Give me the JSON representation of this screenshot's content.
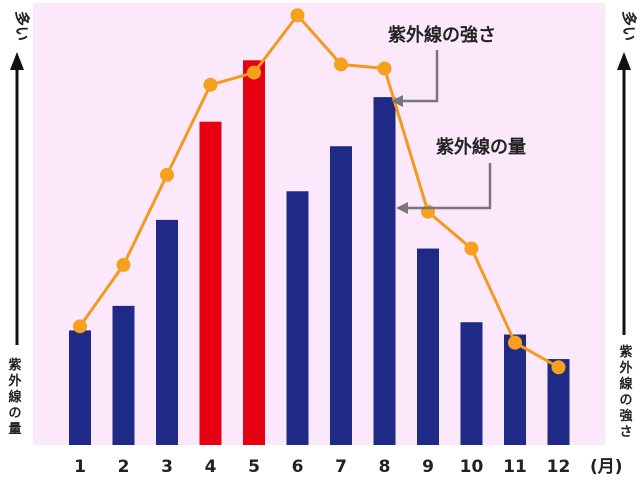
{
  "chart_data": {
    "type": "bar",
    "categories": [
      "1",
      "2",
      "3",
      "4",
      "5",
      "6",
      "7",
      "8",
      "9",
      "10",
      "11",
      "12"
    ],
    "x_unit": "(月)",
    "series": [
      {
        "name": "紫外線の量",
        "kind": "bar",
        "values": [
          28,
          34,
          55,
          79,
          94,
          62,
          73,
          85,
          48,
          30,
          27,
          21
        ],
        "highlight_categories": [
          "4",
          "5"
        ]
      },
      {
        "name": "紫外線の強さ",
        "kind": "line",
        "values": [
          29,
          44,
          66,
          88,
          91,
          105,
          93,
          92,
          57,
          48,
          25,
          19
        ]
      }
    ],
    "left_axis": {
      "top_label": "多い",
      "label": "紫外線の量"
    },
    "right_axis": {
      "top_label": "多い",
      "label": "紫外線の強さ"
    },
    "annotations": [
      {
        "text": "紫外線の強さ",
        "series": "紫外線の強さ",
        "category": "8"
      },
      {
        "text": "紫外線の量",
        "series": "紫外線の量",
        "category": "8"
      }
    ],
    "ylim": [
      0,
      108
    ],
    "grid": false,
    "colors": {
      "plot_background": "#fce8fb",
      "bar": "#1e2a86",
      "bar_highlight": "#e60012",
      "line": "#f39a1e",
      "marker": "#f5a11e",
      "annotation_arrow": "#777777"
    }
  }
}
